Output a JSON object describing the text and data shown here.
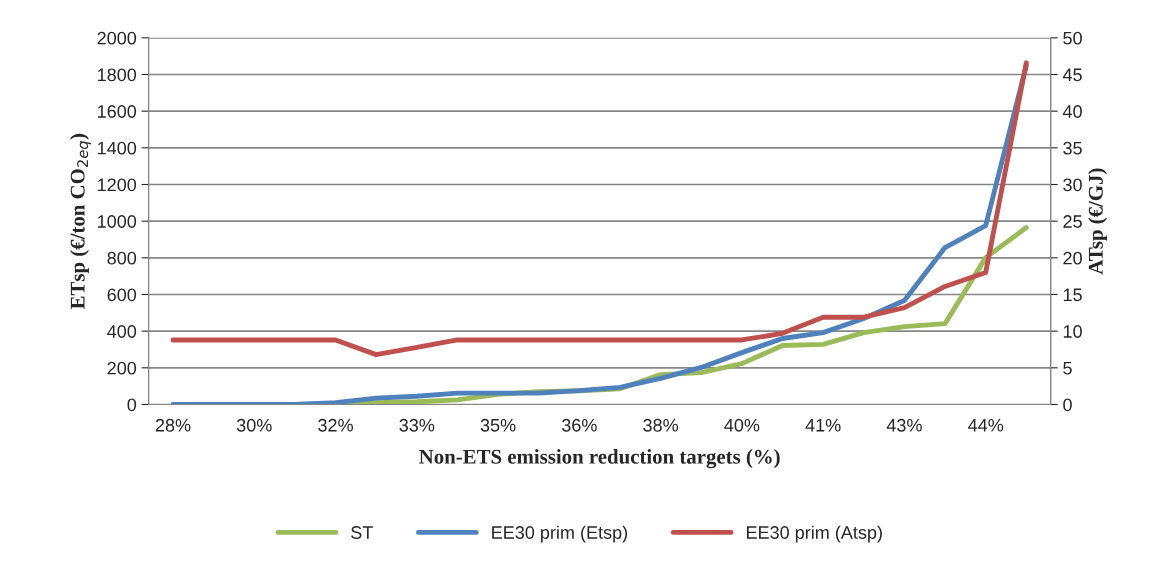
{
  "chart_data": {
    "type": "line",
    "xlabel": "Non-ETS emission reduction targets (%)",
    "ylabel": "ETsp (€/ton CO$_{2eq}$)",
    "y2label": "ATsp (€/GJ)",
    "categories": [
      "28%",
      null,
      "30%",
      null,
      "32%",
      null,
      "33%",
      null,
      "35%",
      null,
      "36%",
      null,
      "38%",
      null,
      "40%",
      null,
      "41%",
      null,
      "43%",
      null,
      "44%",
      null
    ],
    "series": [
      {
        "name": "ST",
        "color": "#9bbb59",
        "values": [
          0,
          0,
          0,
          0,
          5,
          10,
          15,
          25,
          55,
          70,
          75,
          86,
          163,
          174,
          223,
          322,
          328,
          392,
          425,
          441,
          801,
          965
        ]
      },
      {
        "name": "EE30 prim (Etsp)",
        "color": "#4f81bd",
        "values": [
          0,
          0,
          0,
          0,
          10,
          35,
          45,
          62,
          62,
          62,
          76,
          93,
          142,
          202,
          283,
          360,
          392,
          469,
          567,
          856,
          976,
          1850
        ]
      },
      {
        "name": "EE30 prim (Atsp)",
        "color": "#c0504d",
        "axis": "y2",
        "values": [
          8.8,
          8.8,
          8.8,
          8.8,
          8.8,
          6.8,
          7.8,
          8.8,
          8.8,
          8.8,
          8.8,
          8.8,
          8.8,
          8.8,
          8.8,
          9.7,
          11.9,
          11.9,
          13.2,
          16.1,
          18.0,
          46.6
        ]
      }
    ],
    "ylim": [
      0,
      2000
    ],
    "yticks": [
      0,
      200,
      400,
      600,
      800,
      1000,
      1200,
      1400,
      1600,
      1800,
      2000
    ],
    "y2lim": [
      0,
      50
    ],
    "y2ticks": [
      0,
      5,
      10,
      15,
      20,
      25,
      30,
      35,
      40,
      45,
      50
    ],
    "grid": "y",
    "legend": "bottom",
    "marker": "none",
    "line_style": "solid"
  }
}
